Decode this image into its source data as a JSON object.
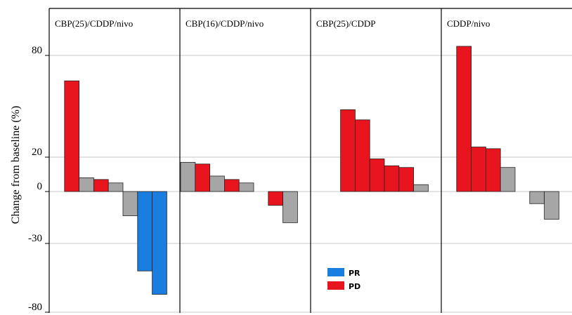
{
  "chart_data": {
    "type": "bar",
    "ylabel": "Change from baseline (%)",
    "yticks": [
      80,
      20,
      0,
      -30,
      -80
    ],
    "ylim": [
      -80,
      80
    ],
    "grid": "horizontal",
    "legend": {
      "placement": "bottom-middle",
      "entries": [
        {
          "label": "PR",
          "color": "#1a7ee0"
        },
        {
          "label": "PD",
          "color": "#e8141e"
        }
      ]
    },
    "colors": {
      "PR": "#1a7ee0",
      "PD": "#e8141e",
      "none": "#a6a6a6"
    },
    "panels": [
      {
        "title": "CBP(25)/CDDP/nivo",
        "bars": [
          {
            "value": null,
            "response": ""
          },
          {
            "value": 65,
            "response": "PD"
          },
          {
            "value": 8,
            "response": ""
          },
          {
            "value": 7,
            "response": "PD"
          },
          {
            "value": 5,
            "response": ""
          },
          {
            "value": -14,
            "response": ""
          },
          {
            "value": -50,
            "response": "PR"
          },
          {
            "value": -67,
            "response": "PR"
          }
        ]
      },
      {
        "title": "CBP(16)/CDDP/nivo",
        "bars": [
          {
            "value": 17,
            "response": ""
          },
          {
            "value": 16,
            "response": "PD"
          },
          {
            "value": 9,
            "response": ""
          },
          {
            "value": 7,
            "response": "PD"
          },
          {
            "value": 5,
            "response": ""
          },
          {
            "value": null,
            "response": ""
          },
          {
            "value": -8,
            "response": "PD"
          },
          {
            "value": -18,
            "response": ""
          }
        ]
      },
      {
        "title": "CBP(25)/CDDP",
        "bars": [
          {
            "value": null,
            "response": ""
          },
          {
            "value": null,
            "response": ""
          },
          {
            "value": 48,
            "response": "PD"
          },
          {
            "value": 42,
            "response": "PD"
          },
          {
            "value": 19,
            "response": "PD"
          },
          {
            "value": 15,
            "response": "PD"
          },
          {
            "value": 14,
            "response": "PD"
          },
          {
            "value": 4,
            "response": ""
          }
        ]
      },
      {
        "title": "CDDP/nivo",
        "bars": [
          {
            "value": null,
            "response": ""
          },
          {
            "value": 85,
            "response": "PD"
          },
          {
            "value": 26,
            "response": "PD"
          },
          {
            "value": 25,
            "response": "PD"
          },
          {
            "value": 14,
            "response": ""
          },
          {
            "value": null,
            "response": ""
          },
          {
            "value": -7,
            "response": ""
          },
          {
            "value": -16,
            "response": ""
          }
        ]
      }
    ]
  }
}
